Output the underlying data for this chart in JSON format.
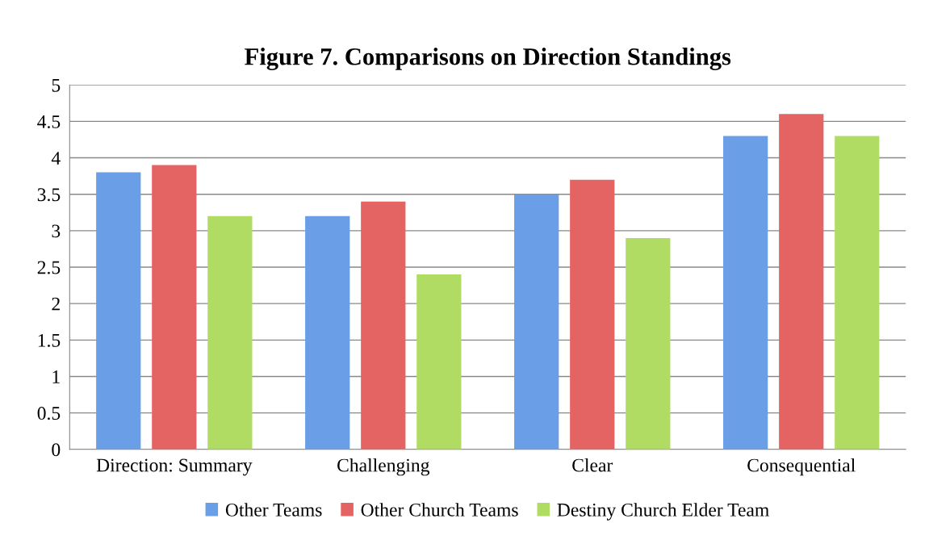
{
  "chart_data": {
    "type": "bar",
    "title": "Figure 7. Comparisons on Direction Standings",
    "categories": [
      "Direction: Summary",
      "Challenging",
      "Clear",
      "Consequential"
    ],
    "series": [
      {
        "name": "Other Teams",
        "color": "#6a9ee6",
        "values": [
          3.8,
          3.2,
          3.5,
          4.3
        ]
      },
      {
        "name": "Other Church Teams",
        "color": "#e46464",
        "values": [
          3.9,
          3.4,
          3.7,
          4.6
        ]
      },
      {
        "name": "Destiny Church Elder Team",
        "color": "#b0dc64",
        "values": [
          3.2,
          2.4,
          2.9,
          4.3
        ]
      }
    ],
    "ylim": [
      0,
      5
    ],
    "yticks": [
      0,
      0.5,
      1,
      1.5,
      2,
      2.5,
      3,
      3.5,
      4,
      4.5,
      5
    ],
    "grid": "y",
    "legend": "bottom"
  }
}
